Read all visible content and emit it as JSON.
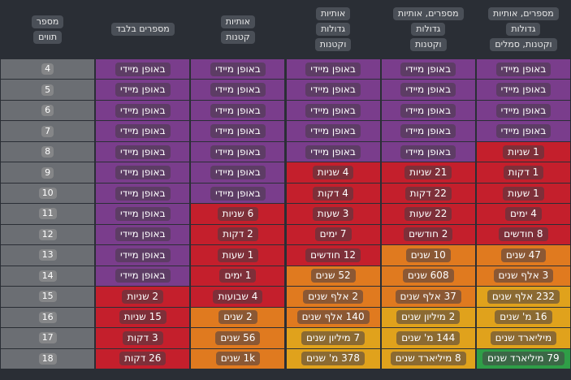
{
  "table": {
    "header": [
      [
        "מספר",
        "תווים"
      ],
      [
        "מספרים בלבד"
      ],
      [
        "אותיות",
        "קטנות"
      ],
      [
        "אותיות",
        "גדולות",
        "וקטנות"
      ],
      [
        "מספרים, אותיות",
        "גדולות",
        "וקטנות"
      ],
      [
        "מספרים, אותיות",
        "גדולות",
        "וקטנות, סמלים"
      ]
    ],
    "rows": [
      [
        "4",
        "באופן מיידי",
        "באופן מיידי",
        "באופן מיידי",
        "באופן מיידי",
        "באופן מיידי"
      ],
      [
        "5",
        "באופן מיידי",
        "באופן מיידי",
        "באופן מיידי",
        "באופן מיידי",
        "באופן מיידי"
      ],
      [
        "6",
        "באופן מיידי",
        "באופן מיידי",
        "באופן מיידי",
        "באופן מיידי",
        "באופן מיידי"
      ],
      [
        "7",
        "באופן מיידי",
        "באופן מיידי",
        "באופן מיידי",
        "באופן מיידי",
        "באופן מיידי"
      ],
      [
        "8",
        "באופן מיידי",
        "באופן מיידי",
        "באופן מיידי",
        "באופן מיידי",
        "1 שניות"
      ],
      [
        "9",
        "באופן מיידי",
        "באופן מיידי",
        "4 שניות",
        "21 שניות",
        "1 דקות"
      ],
      [
        "10",
        "באופן מיידי",
        "באופן מיידי",
        "4 דקות",
        "22 דקות",
        "1 שעות"
      ],
      [
        "11",
        "באופן מיידי",
        "6 שניות",
        "3 שעות",
        "22 שעות",
        "4 ימים"
      ],
      [
        "12",
        "באופן מיידי",
        "2 דקות",
        "7 ימים",
        "2 חודשים",
        "8 חודשים"
      ],
      [
        "13",
        "באופן מיידי",
        "1 שעות",
        "12 חודשים",
        "10 שנים",
        "47 שנים"
      ],
      [
        "14",
        "באופן מיידי",
        "1 ימים",
        "52 שנים",
        "608 שנים",
        "3 אלף שנים"
      ],
      [
        "15",
        "2 שניות",
        "4 שבועות",
        "2 אלף שנים",
        "37 אלף שנים",
        "232 אלף שנים"
      ],
      [
        "16",
        "15 שניות",
        "2 שנים",
        "140 אלף שנים",
        "2 מיליון שנים",
        "16 מ' שנים"
      ],
      [
        "17",
        "3 דקות",
        "56 שנים",
        "7 מיליון שנים",
        "144 מ' שנים",
        "מיליארד שנים"
      ],
      [
        "18",
        "26 דקות",
        "1k שנים",
        "378 מ' שנים",
        "8 מיליארד שנים",
        "79 מיליארד שנים"
      ]
    ],
    "colors": [
      [
        "#6b6e73",
        "#7a3d8c",
        "#7a3d8c",
        "#7a3d8c",
        "#7a3d8c",
        "#7a3d8c"
      ],
      [
        "#6b6e73",
        "#7a3d8c",
        "#7a3d8c",
        "#7a3d8c",
        "#7a3d8c",
        "#7a3d8c"
      ],
      [
        "#6b6e73",
        "#7a3d8c",
        "#7a3d8c",
        "#7a3d8c",
        "#7a3d8c",
        "#7a3d8c"
      ],
      [
        "#6b6e73",
        "#7a3d8c",
        "#7a3d8c",
        "#7a3d8c",
        "#7a3d8c",
        "#7a3d8c"
      ],
      [
        "#6b6e73",
        "#7a3d8c",
        "#7a3d8c",
        "#7a3d8c",
        "#7a3d8c",
        "#c41f2c"
      ],
      [
        "#6b6e73",
        "#7a3d8c",
        "#7a3d8c",
        "#c41f2c",
        "#c41f2c",
        "#c41f2c"
      ],
      [
        "#6b6e73",
        "#7a3d8c",
        "#7a3d8c",
        "#c41f2c",
        "#c41f2c",
        "#c41f2c"
      ],
      [
        "#6b6e73",
        "#7a3d8c",
        "#c41f2c",
        "#c41f2c",
        "#c41f2c",
        "#c41f2c"
      ],
      [
        "#6b6e73",
        "#7a3d8c",
        "#c41f2c",
        "#c41f2c",
        "#c41f2c",
        "#c41f2c"
      ],
      [
        "#6b6e73",
        "#7a3d8c",
        "#c41f2c",
        "#c41f2c",
        "#e07a1f",
        "#e07a1f"
      ],
      [
        "#6b6e73",
        "#7a3d8c",
        "#c41f2c",
        "#e07a1f",
        "#e07a1f",
        "#e07a1f"
      ],
      [
        "#6b6e73",
        "#c41f2c",
        "#c41f2c",
        "#e07a1f",
        "#e07a1f",
        "#e0a21c"
      ],
      [
        "#6b6e73",
        "#c41f2c",
        "#e07a1f",
        "#e07a1f",
        "#e0a21c",
        "#e0a21c"
      ],
      [
        "#6b6e73",
        "#c41f2c",
        "#e07a1f",
        "#e0a21c",
        "#e0a21c",
        "#e0a21c"
      ],
      [
        "#6b6e73",
        "#c41f2c",
        "#e07a1f",
        "#e0a21c",
        "#e0a21c",
        "#2f9e47"
      ]
    ]
  }
}
